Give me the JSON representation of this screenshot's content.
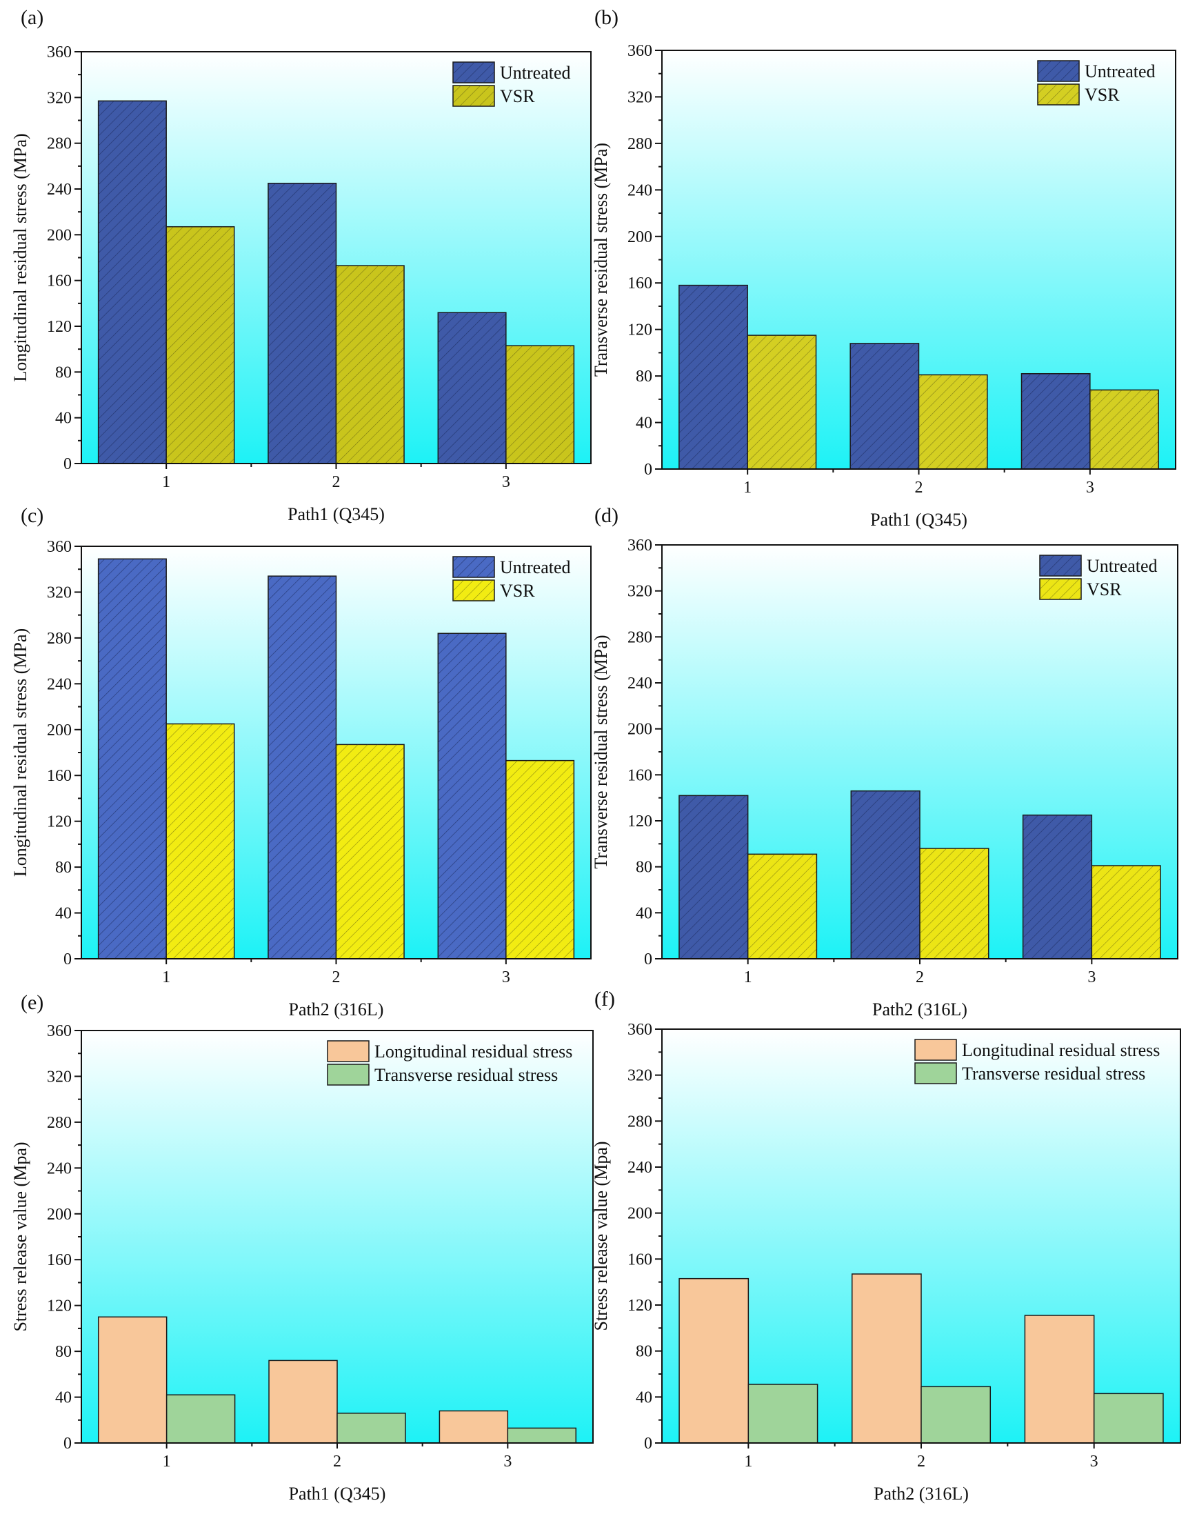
{
  "chart_data": [
    {
      "panel": "(a)",
      "type": "bar",
      "categories": [
        "1",
        "2",
        "3"
      ],
      "series": [
        {
          "name": "Untreated",
          "values": [
            317,
            245,
            132
          ],
          "color": "#3f5aa8",
          "hatch": true
        },
        {
          "name": "VSR",
          "values": [
            207,
            173,
            103
          ],
          "color": "#c9c51c",
          "hatch": true
        }
      ],
      "xlabel": "Path1 (Q345)",
      "ylabel": "Longitudinal residual stress (MPa)",
      "ylim": [
        0,
        360
      ],
      "yticks": [
        "0",
        "40",
        "80",
        "120",
        "160",
        "200",
        "240",
        "280",
        "320",
        "360"
      ],
      "legend": "top-right"
    },
    {
      "panel": "(b)",
      "type": "bar",
      "categories": [
        "1",
        "2",
        "3"
      ],
      "series": [
        {
          "name": "Untreated",
          "values": [
            158,
            108,
            82
          ],
          "color": "#3f5aa8",
          "hatch": true
        },
        {
          "name": "VSR",
          "values": [
            115,
            81,
            68
          ],
          "color": "#d4cf22",
          "hatch": true
        }
      ],
      "xlabel": "Path1 (Q345)",
      "ylabel": "Transverse residual stress (MPa)",
      "ylim": [
        0,
        360
      ],
      "yticks": [
        "0",
        "40",
        "80",
        "120",
        "160",
        "200",
        "240",
        "280",
        "320",
        "360"
      ],
      "legend": "top-right"
    },
    {
      "panel": "(c)",
      "type": "bar",
      "categories": [
        "1",
        "2",
        "3"
      ],
      "series": [
        {
          "name": "Untreated",
          "values": [
            349,
            334,
            284
          ],
          "color": "#4a6ac4",
          "hatch": true
        },
        {
          "name": "VSR",
          "values": [
            205,
            187,
            173
          ],
          "color": "#f2ec12",
          "hatch": true
        }
      ],
      "xlabel": "Path2 (316L)",
      "ylabel": "Longitudinal residual stress (MPa)",
      "ylim": [
        0,
        360
      ],
      "yticks": [
        "0",
        "40",
        "80",
        "120",
        "160",
        "200",
        "240",
        "280",
        "320",
        "360"
      ],
      "legend": "top-right"
    },
    {
      "panel": "(d)",
      "type": "bar",
      "categories": [
        "1",
        "2",
        "3"
      ],
      "series": [
        {
          "name": "Untreated",
          "values": [
            142,
            146,
            125
          ],
          "color": "#3f5aa8",
          "hatch": true
        },
        {
          "name": "VSR",
          "values": [
            91,
            96,
            81
          ],
          "color": "#ece515",
          "hatch": true
        }
      ],
      "xlabel": "Path2 (316L)",
      "ylabel": "Transverse residual stress (MPa)",
      "ylim": [
        0,
        360
      ],
      "yticks": [
        "0",
        "40",
        "80",
        "120",
        "160",
        "200",
        "240",
        "280",
        "320",
        "360"
      ],
      "legend": "top-right"
    },
    {
      "panel": "(e)",
      "type": "bar",
      "categories": [
        "1",
        "2",
        "3"
      ],
      "series": [
        {
          "name": "Longitudinal residual stress",
          "values": [
            110,
            72,
            28
          ],
          "color": "#f8c79a",
          "hatch": false
        },
        {
          "name": "Transverse residual stress",
          "values": [
            42,
            26,
            13
          ],
          "color": "#9fd49a",
          "hatch": false
        }
      ],
      "xlabel": "Path1 (Q345)",
      "ylabel": "Stress release value (Mpa)",
      "ylim": [
        0,
        360
      ],
      "yticks": [
        "0",
        "40",
        "80",
        "120",
        "160",
        "200",
        "240",
        "280",
        "320",
        "360"
      ],
      "legend": "top-right"
    },
    {
      "panel": "(f)",
      "type": "bar",
      "categories": [
        "1",
        "2",
        "3"
      ],
      "series": [
        {
          "name": "Longitudinal residual stress",
          "values": [
            143,
            147,
            111
          ],
          "color": "#f8c79a",
          "hatch": false
        },
        {
          "name": "Transverse residual stress",
          "values": [
            51,
            49,
            43
          ],
          "color": "#9fd49a",
          "hatch": false
        }
      ],
      "xlabel": "Path2 (316L)",
      "ylabel": "Stress release value (Mpa)",
      "ylim": [
        0,
        360
      ],
      "yticks": [
        "0",
        "40",
        "80",
        "120",
        "160",
        "200",
        "240",
        "280",
        "320",
        "360"
      ],
      "legend": "top-right"
    }
  ]
}
